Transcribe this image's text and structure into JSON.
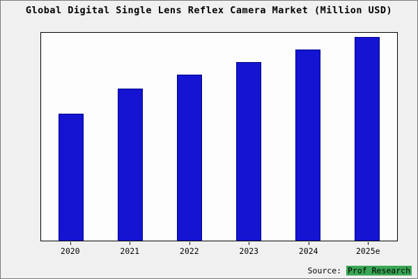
{
  "chart_data": {
    "type": "bar",
    "title": "Global Digital Single Lens Reflex Camera Market (Million USD)",
    "categories": [
      "2020",
      "2021",
      "2022",
      "2023",
      "2024",
      "2025e"
    ],
    "values": [
      61,
      73,
      80,
      86,
      92,
      98
    ],
    "values_note": "y-axis has no tick labels; values estimated as percent of plot height",
    "xlabel": "",
    "ylabel": "",
    "ylim": [
      0,
      100
    ],
    "grid": false,
    "legend": "none",
    "bar_color": "#1414d2",
    "bar_edge_color": "#00008b",
    "plot_background": "#fdfdfd",
    "page_background": "#f0f0f0"
  },
  "source": {
    "prefix": "Source: ",
    "name": "Prof Research",
    "highlight_color": "#3aa655"
  }
}
